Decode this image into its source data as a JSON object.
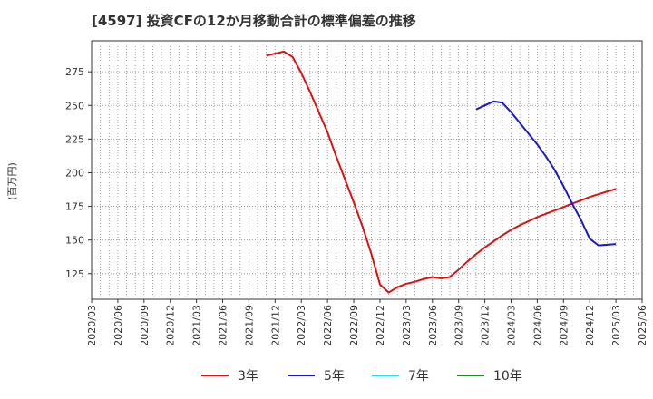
{
  "chart_data": {
    "type": "line",
    "title": "[4597]  投資CFの12か月移動合計の標準偏差の推移",
    "ylabel": "(百万円)",
    "xlabel": "",
    "ylim": [
      106,
      298
    ],
    "grid": true,
    "legend_position": "bottom",
    "y_ticks": [
      125,
      150,
      175,
      200,
      225,
      250,
      275
    ],
    "x_ticks": [
      "2020/03",
      "2020/06",
      "2020/09",
      "2020/12",
      "2021/03",
      "2021/06",
      "2021/09",
      "2021/12",
      "2022/03",
      "2022/06",
      "2022/09",
      "2022/12",
      "2023/03",
      "2023/06",
      "2023/09",
      "2023/12",
      "2024/03",
      "2024/06",
      "2024/09",
      "2024/12",
      "2025/03",
      "2025/06"
    ],
    "series": [
      {
        "name": "3年",
        "color": "#dd1111",
        "points": [
          [
            "2021/11",
            287
          ],
          [
            "2022/01",
            290
          ],
          [
            "2022/02",
            286
          ],
          [
            "2022/03",
            274
          ],
          [
            "2022/04",
            260
          ],
          [
            "2022/05",
            245
          ],
          [
            "2022/06",
            230
          ],
          [
            "2022/07",
            212
          ],
          [
            "2022/08",
            195
          ],
          [
            "2022/09",
            178
          ],
          [
            "2022/10",
            160
          ],
          [
            "2022/11",
            140
          ],
          [
            "2022/12",
            117
          ],
          [
            "2023/01",
            111
          ],
          [
            "2023/02",
            115
          ],
          [
            "2023/03",
            117.5
          ],
          [
            "2023/04",
            119
          ],
          [
            "2023/05",
            121
          ],
          [
            "2023/06",
            122.5
          ],
          [
            "2023/07",
            121.5
          ],
          [
            "2023/08",
            122.5
          ],
          [
            "2023/09",
            128
          ],
          [
            "2023/10",
            134
          ],
          [
            "2023/11",
            139.5
          ],
          [
            "2023/12",
            144.5
          ],
          [
            "2024/01",
            149
          ],
          [
            "2024/02",
            153.5
          ],
          [
            "2024/03",
            157.5
          ],
          [
            "2024/04",
            161
          ],
          [
            "2024/05",
            164
          ],
          [
            "2024/06",
            167
          ],
          [
            "2024/07",
            169.5
          ],
          [
            "2024/08",
            172
          ],
          [
            "2024/09",
            174.5
          ],
          [
            "2024/10",
            177
          ],
          [
            "2024/11",
            179.5
          ],
          [
            "2024/12",
            182
          ],
          [
            "2025/01",
            184
          ],
          [
            "2025/02",
            186
          ],
          [
            "2025/03",
            188
          ]
        ]
      },
      {
        "name": "5年",
        "color": "#1a1acc",
        "points": [
          [
            "2023/11",
            247
          ],
          [
            "2024/01",
            253
          ],
          [
            "2024/02",
            252
          ],
          [
            "2024/03",
            245
          ],
          [
            "2024/04",
            237
          ],
          [
            "2024/05",
            229
          ],
          [
            "2024/06",
            221
          ],
          [
            "2024/07",
            212
          ],
          [
            "2024/08",
            202
          ],
          [
            "2024/09",
            190
          ],
          [
            "2024/10",
            177
          ],
          [
            "2024/11",
            165
          ],
          [
            "2024/12",
            151
          ],
          [
            "2025/01",
            146
          ],
          [
            "2025/03",
            147
          ]
        ]
      },
      {
        "name": "7年",
        "color": "#22ddee",
        "points": []
      },
      {
        "name": "10年",
        "color": "#228822",
        "points": []
      }
    ]
  }
}
